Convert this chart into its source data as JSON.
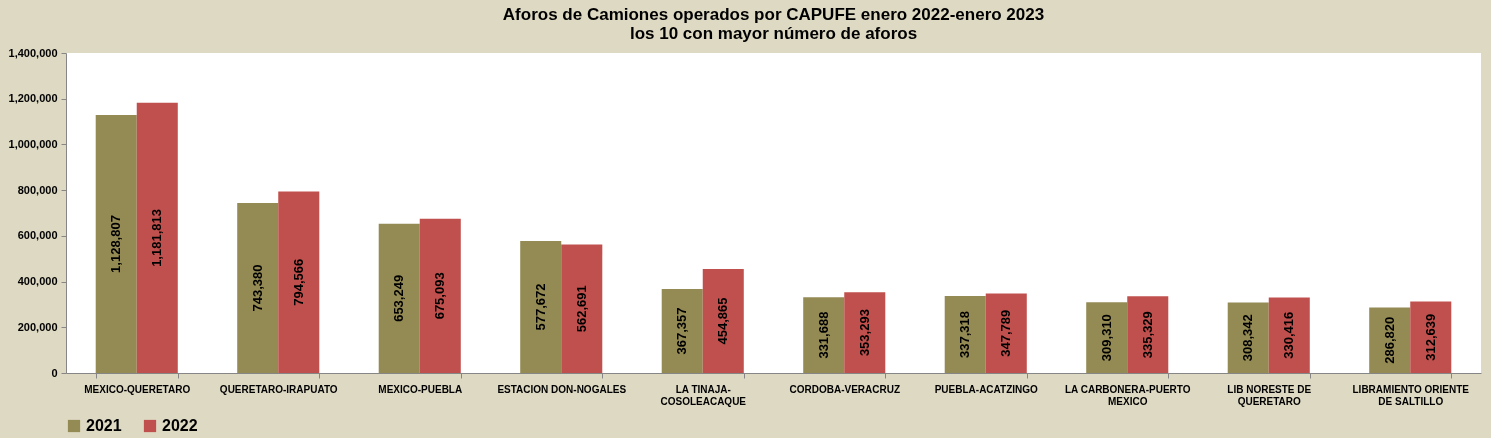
{
  "chart_data": {
    "type": "bar",
    "title": "Aforos de Camiones operados por CAPUFE enero 2022-enero 2023",
    "subtitle": "los 10 con mayor número de aforos",
    "categories": [
      "MEXICO-QUERETARO",
      "QUERETARO-IRAPUATO",
      "MEXICO-PUEBLA",
      "ESTACION DON-NOGALES",
      "LA TINAJA-COSOLEACAQUE",
      "CORDOBA-VERACRUZ",
      "PUEBLA-ACATZINGO",
      "LA CARBONERA-PUERTO MEXICO",
      "LIB NORESTE DE QUERETARO",
      "LIBRAMIENTO ORIENTE DE  SALTILLO"
    ],
    "series": [
      {
        "name": "2021",
        "color": "#948a54",
        "values": [
          1128807,
          743380,
          653249,
          577672,
          367357,
          331688,
          337318,
          309310,
          308342,
          286820
        ],
        "value_labels": [
          "1,128,807",
          "743,380",
          "653,249",
          "577,672",
          "367,357",
          "331,688",
          "337,318",
          "309,310",
          "308,342",
          "286,820"
        ]
      },
      {
        "name": "2022",
        "color": "#c0504d",
        "values": [
          1181813,
          794566,
          675093,
          562691,
          454865,
          353293,
          347789,
          335329,
          330416,
          312639
        ],
        "value_labels": [
          "1,181,813",
          "794,566",
          "675,093",
          "562,691",
          "454,865",
          "353,293",
          "347,789",
          "335,329",
          "330,416",
          "312,639"
        ]
      }
    ],
    "ylim": [
      0,
      1400000
    ],
    "yticks": [
      0,
      {
        "value": 200000,
        "label": "200,000"
      },
      {
        "value": 400000,
        "label": "400,000"
      },
      {
        "value": 600000,
        "label": "600,000"
      },
      {
        "value": 800000,
        "label": "800,000"
      },
      {
        "value": 1000000,
        "label": "1,000,000"
      },
      {
        "value": 1200000,
        "label": "1,200,000"
      },
      {
        "value": 1400000,
        "label": "1,400,000"
      }
    ],
    "grid": false,
    "legend": "bottom"
  }
}
